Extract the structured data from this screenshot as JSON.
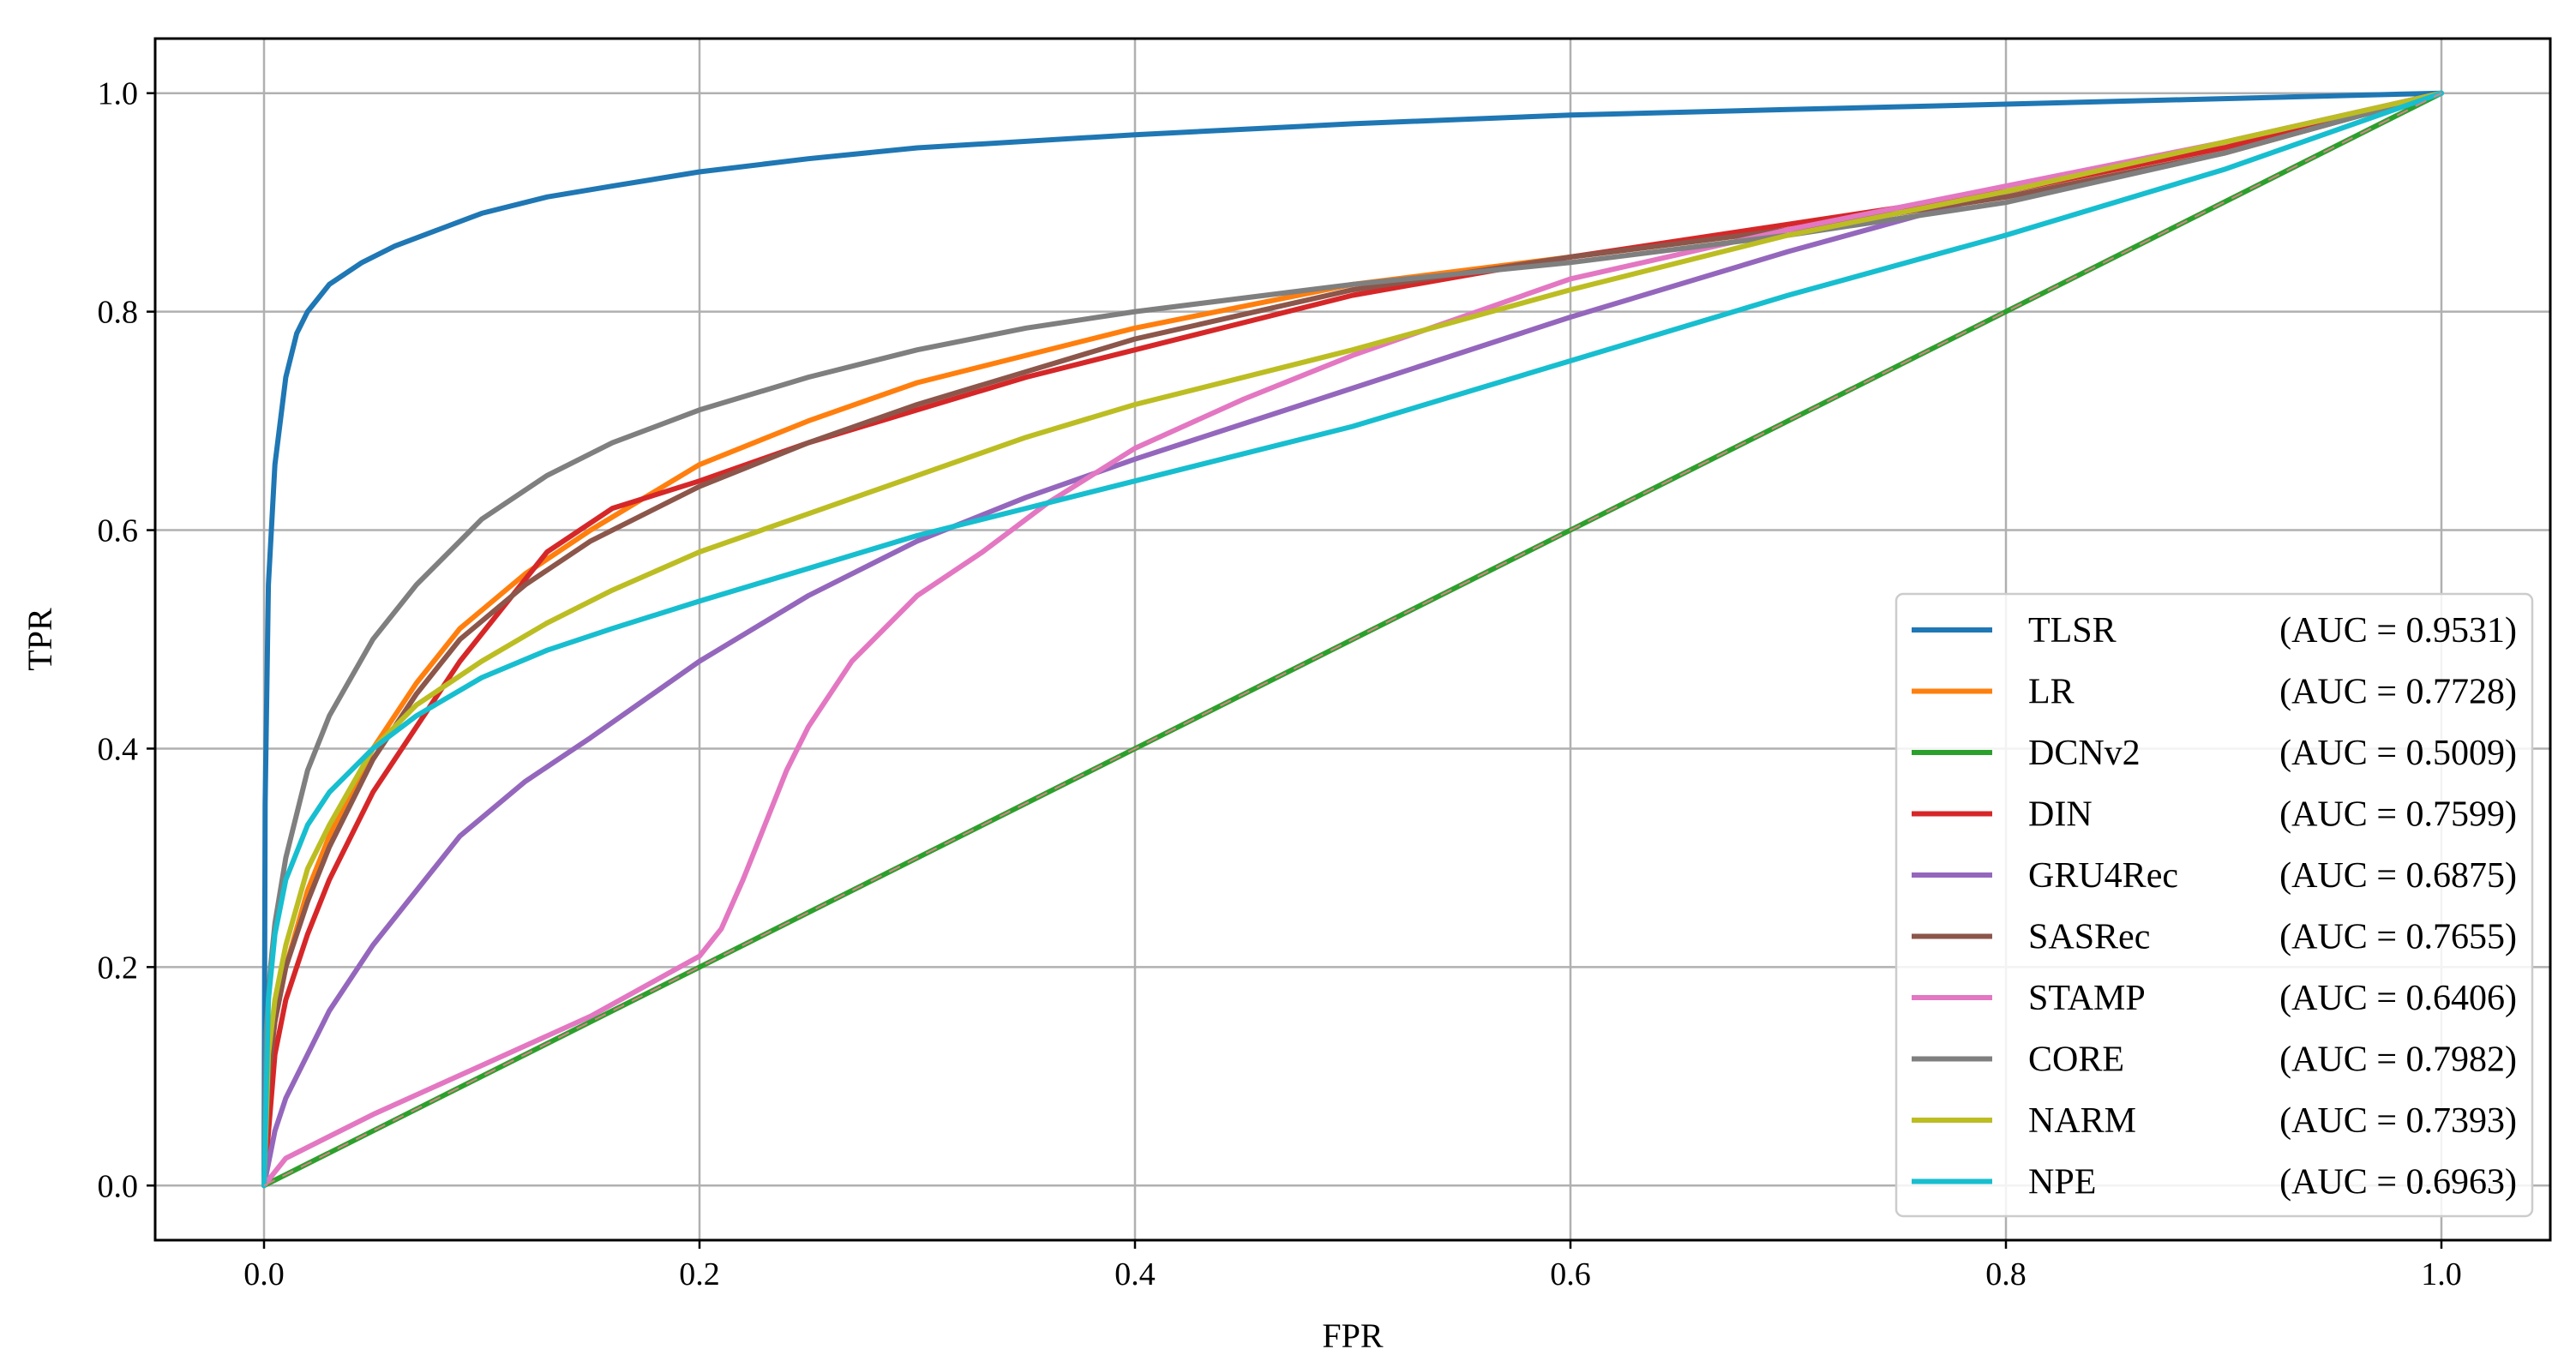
{
  "chart_data": {
    "type": "line",
    "title": "",
    "xlabel": "FPR",
    "ylabel": "TPR",
    "xlim": [
      -0.05,
      1.05
    ],
    "ylim": [
      -0.05,
      1.05
    ],
    "xticks": [
      0.0,
      0.2,
      0.4,
      0.6,
      0.8,
      1.0
    ],
    "yticks": [
      0.0,
      0.2,
      0.4,
      0.6,
      0.8,
      1.0
    ],
    "xtick_labels": [
      "0.0",
      "0.2",
      "0.4",
      "0.6",
      "0.8",
      "1.0"
    ],
    "ytick_labels": [
      "0.0",
      "0.2",
      "0.4",
      "0.6",
      "0.8",
      "1.0"
    ],
    "grid": true,
    "legend_position": "bottom-right",
    "series": [
      {
        "name": "TLSR",
        "auc_label": "(AUC = 0.9531)",
        "color": "#1f77b4",
        "x": [
          0,
          0.0005,
          0.002,
          0.005,
          0.01,
          0.015,
          0.02,
          0.03,
          0.045,
          0.06,
          0.08,
          0.1,
          0.13,
          0.16,
          0.2,
          0.25,
          0.3,
          0.4,
          0.5,
          0.6,
          0.7,
          0.8,
          0.9,
          1.0
        ],
        "y": [
          0,
          0.35,
          0.55,
          0.66,
          0.74,
          0.78,
          0.8,
          0.825,
          0.845,
          0.86,
          0.875,
          0.89,
          0.905,
          0.915,
          0.928,
          0.94,
          0.95,
          0.962,
          0.972,
          0.98,
          0.985,
          0.99,
          0.995,
          1.0
        ]
      },
      {
        "name": "LR",
        "auc_label": "(AUC = 0.7728)",
        "color": "#ff7f0e",
        "x": [
          0,
          0.002,
          0.005,
          0.01,
          0.02,
          0.03,
          0.05,
          0.07,
          0.09,
          0.12,
          0.15,
          0.2,
          0.25,
          0.3,
          0.35,
          0.4,
          0.5,
          0.6,
          0.7,
          0.8,
          0.9,
          1.0
        ],
        "y": [
          0,
          0.1,
          0.15,
          0.2,
          0.27,
          0.32,
          0.4,
          0.46,
          0.51,
          0.56,
          0.6,
          0.66,
          0.7,
          0.735,
          0.76,
          0.785,
          0.825,
          0.85,
          0.875,
          0.905,
          0.945,
          1.0
        ]
      },
      {
        "name": "DCNv2",
        "auc_label": "(AUC = 0.5009)",
        "color": "#2ca02c",
        "x": [
          0,
          0.2,
          0.4,
          0.6,
          0.8,
          1.0
        ],
        "y": [
          0,
          0.2,
          0.4,
          0.6,
          0.8,
          1.0
        ]
      },
      {
        "name": "DIN",
        "auc_label": "(AUC = 0.7599)",
        "color": "#d62728",
        "x": [
          0,
          0.005,
          0.01,
          0.02,
          0.03,
          0.05,
          0.07,
          0.09,
          0.11,
          0.13,
          0.16,
          0.2,
          0.25,
          0.3,
          0.35,
          0.4,
          0.5,
          0.6,
          0.7,
          0.8,
          0.9,
          1.0
        ],
        "y": [
          0,
          0.12,
          0.17,
          0.23,
          0.28,
          0.36,
          0.42,
          0.48,
          0.53,
          0.58,
          0.62,
          0.645,
          0.68,
          0.71,
          0.74,
          0.765,
          0.815,
          0.85,
          0.88,
          0.91,
          0.95,
          1.0
        ]
      },
      {
        "name": "GRU4Rec",
        "auc_label": "(AUC = 0.6875)",
        "color": "#9467bd",
        "x": [
          0,
          0.005,
          0.01,
          0.02,
          0.03,
          0.05,
          0.07,
          0.09,
          0.12,
          0.15,
          0.2,
          0.25,
          0.3,
          0.35,
          0.4,
          0.5,
          0.6,
          0.7,
          0.8,
          0.9,
          1.0
        ],
        "y": [
          0,
          0.05,
          0.08,
          0.12,
          0.16,
          0.22,
          0.27,
          0.32,
          0.37,
          0.41,
          0.48,
          0.54,
          0.59,
          0.63,
          0.665,
          0.73,
          0.795,
          0.855,
          0.91,
          0.955,
          1.0
        ]
      },
      {
        "name": "SASRec",
        "auc_label": "(AUC = 0.7655)",
        "color": "#8c564b",
        "x": [
          0,
          0.002,
          0.005,
          0.01,
          0.02,
          0.03,
          0.05,
          0.07,
          0.09,
          0.12,
          0.15,
          0.2,
          0.25,
          0.3,
          0.35,
          0.4,
          0.5,
          0.6,
          0.7,
          0.8,
          0.9,
          1.0
        ],
        "y": [
          0,
          0.1,
          0.15,
          0.2,
          0.26,
          0.31,
          0.39,
          0.45,
          0.5,
          0.55,
          0.59,
          0.64,
          0.68,
          0.715,
          0.745,
          0.775,
          0.82,
          0.85,
          0.875,
          0.905,
          0.945,
          1.0
        ]
      },
      {
        "name": "STAMP",
        "auc_label": "(AUC = 0.6406)",
        "color": "#e377c2",
        "x": [
          0,
          0.01,
          0.05,
          0.1,
          0.15,
          0.2,
          0.21,
          0.22,
          0.23,
          0.24,
          0.25,
          0.27,
          0.3,
          0.33,
          0.36,
          0.4,
          0.45,
          0.5,
          0.6,
          0.7,
          0.8,
          0.9,
          1.0
        ],
        "y": [
          0,
          0.025,
          0.065,
          0.11,
          0.155,
          0.21,
          0.235,
          0.28,
          0.33,
          0.38,
          0.42,
          0.48,
          0.54,
          0.58,
          0.625,
          0.675,
          0.72,
          0.76,
          0.83,
          0.875,
          0.915,
          0.955,
          1.0
        ]
      },
      {
        "name": "CORE",
        "auc_label": "(AUC = 0.7982)",
        "color": "#7f7f7f",
        "x": [
          0,
          0.001,
          0.003,
          0.005,
          0.01,
          0.02,
          0.03,
          0.05,
          0.07,
          0.1,
          0.13,
          0.16,
          0.2,
          0.25,
          0.3,
          0.35,
          0.4,
          0.5,
          0.6,
          0.7,
          0.8,
          0.9,
          1.0
        ],
        "y": [
          0,
          0.14,
          0.2,
          0.24,
          0.3,
          0.38,
          0.43,
          0.5,
          0.55,
          0.61,
          0.65,
          0.68,
          0.71,
          0.74,
          0.765,
          0.785,
          0.8,
          0.825,
          0.845,
          0.87,
          0.9,
          0.945,
          1.0
        ]
      },
      {
        "name": "NARM",
        "auc_label": "(AUC = 0.7393)",
        "color": "#bcbd22",
        "x": [
          0,
          0.002,
          0.005,
          0.01,
          0.02,
          0.03,
          0.05,
          0.07,
          0.1,
          0.13,
          0.16,
          0.2,
          0.25,
          0.3,
          0.35,
          0.4,
          0.5,
          0.6,
          0.7,
          0.8,
          0.9,
          1.0
        ],
        "y": [
          0,
          0.12,
          0.17,
          0.22,
          0.29,
          0.33,
          0.4,
          0.44,
          0.48,
          0.515,
          0.545,
          0.58,
          0.615,
          0.65,
          0.685,
          0.715,
          0.765,
          0.82,
          0.87,
          0.91,
          0.955,
          1.0
        ]
      },
      {
        "name": "NPE",
        "auc_label": "(AUC = 0.6963)",
        "color": "#17becf",
        "x": [
          0,
          0.002,
          0.005,
          0.01,
          0.02,
          0.03,
          0.05,
          0.07,
          0.1,
          0.13,
          0.16,
          0.2,
          0.25,
          0.3,
          0.35,
          0.4,
          0.5,
          0.6,
          0.7,
          0.8,
          0.9,
          1.0
        ],
        "y": [
          0,
          0.17,
          0.23,
          0.28,
          0.33,
          0.36,
          0.4,
          0.43,
          0.465,
          0.49,
          0.51,
          0.535,
          0.565,
          0.595,
          0.62,
          0.645,
          0.695,
          0.755,
          0.815,
          0.87,
          0.93,
          1.0
        ]
      }
    ]
  }
}
